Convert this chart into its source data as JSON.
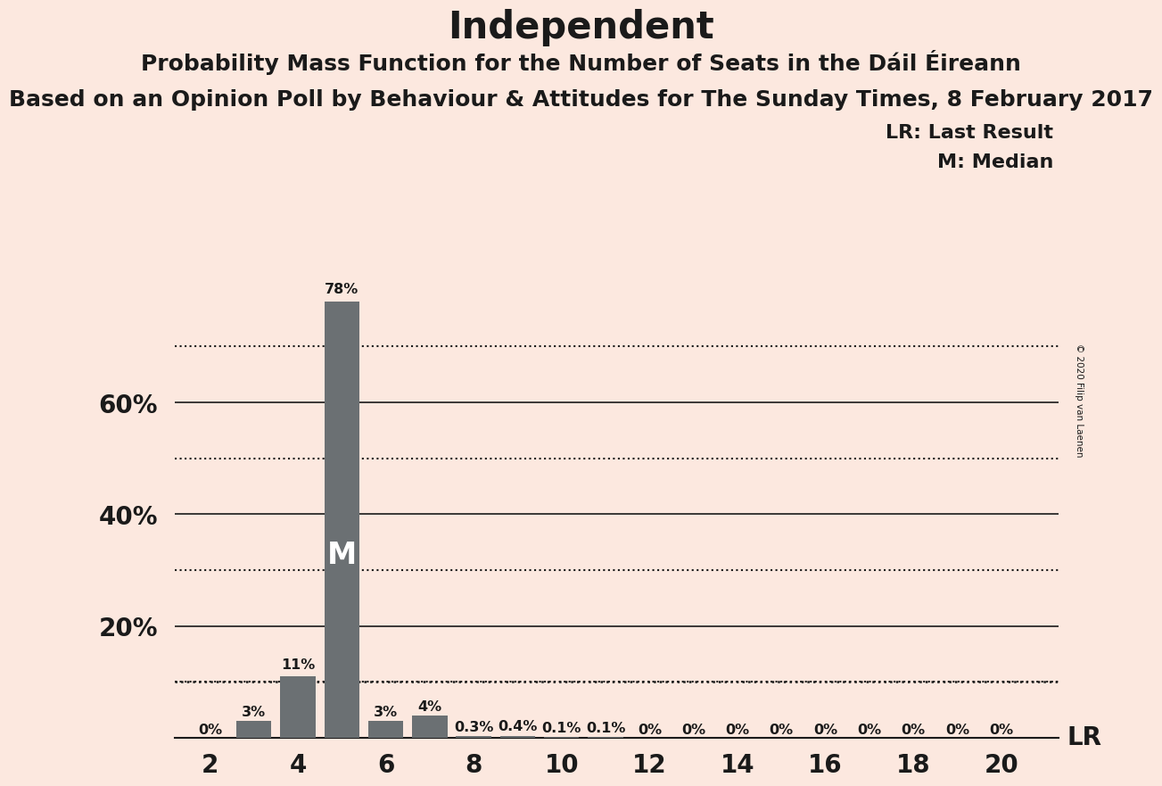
{
  "title": "Independent",
  "subtitle1": "Probability Mass Function for the Number of Seats in the Dáil Éireann",
  "subtitle2": "Based on an Opinion Poll by Behaviour & Attitudes for The Sunday Times, 8 February 2017",
  "copyright": "© 2020 Filip van Laenen",
  "seats": [
    2,
    3,
    4,
    5,
    6,
    7,
    8,
    9,
    10,
    11,
    12,
    13,
    14,
    15,
    16,
    17,
    18,
    19,
    20
  ],
  "probabilities": [
    0.0,
    3.0,
    11.0,
    78.0,
    3.0,
    4.0,
    0.3,
    0.4,
    0.1,
    0.1,
    0.0,
    0.0,
    0.0,
    0.0,
    0.0,
    0.0,
    0.0,
    0.0,
    0.0
  ],
  "labels": [
    "0%",
    "3%",
    "11%",
    "78%",
    "3%",
    "4%",
    "0.3%",
    "0.4%",
    "0.1%",
    "0.1%",
    "0%",
    "0%",
    "0%",
    "0%",
    "0%",
    "0%",
    "0%",
    "0%",
    "0%"
  ],
  "bar_color": "#6b7073",
  "background_color": "#fce8df",
  "median_seat": 5,
  "lr_value": 10.0,
  "ylim": [
    0,
    84
  ],
  "major_yticks": [
    20,
    40,
    60
  ],
  "major_ytick_labels": [
    "20%",
    "40%",
    "60%"
  ],
  "minor_dotted_yticks": [
    10,
    30,
    50,
    70
  ],
  "text_color": "#1a1a1a",
  "title_fontsize": 30,
  "subtitle1_fontsize": 18,
  "subtitle2_fontsize": 18,
  "label_fontsize": 11.5,
  "axis_fontsize": 20,
  "legend_fontsize": 16
}
